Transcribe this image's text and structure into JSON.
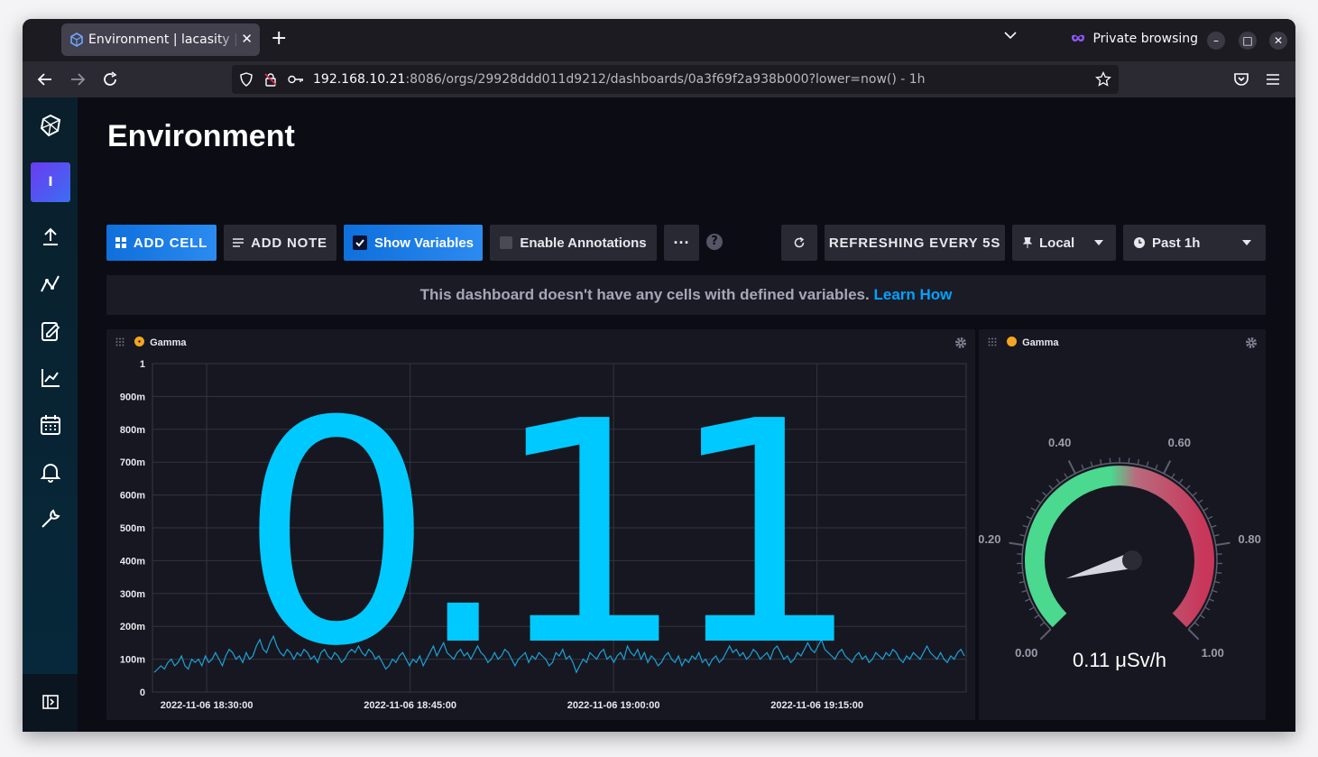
{
  "browser": {
    "tab_title": "Environment | lacasity | InfluxDB",
    "private_label": "Private browsing",
    "url_host": "192.168.10.21",
    "url_rest": ":8086/orgs/29928ddd011d9212/dashboards/0a3f69f2a938b000?lower=now() - 1h"
  },
  "sidebar": {
    "org_initial": "I",
    "items": [
      "influxdb-logo-icon",
      "upload-icon",
      "data-explorer-icon",
      "notebook-icon",
      "graph-icon",
      "calendar-icon",
      "bell-icon",
      "wrench-icon"
    ]
  },
  "dashboard": {
    "title": "Environment",
    "toolbar": {
      "add_cell": "ADD CELL",
      "add_note": "ADD NOTE",
      "show_variables": "Show Variables",
      "enable_annotations": "Enable Annotations",
      "refreshing": "REFRESHING EVERY 5S",
      "timezone": "Local",
      "time_range": "Past 1h"
    },
    "notice": "This dashboard doesn't have any cells with defined variables.",
    "notice_link": "Learn How"
  },
  "cells": {
    "left": {
      "title": "Gamma",
      "big_value": "0.11"
    },
    "right": {
      "title": "Gamma",
      "gauge_label": "0.11 μSv/h"
    }
  },
  "colors": {
    "accent": "#00c9ff",
    "gauge_green": "#4bd88f",
    "gauge_red": "#c8365a"
  },
  "chart_data": [
    {
      "type": "line",
      "title": "Gamma",
      "yticks": [
        "1",
        "900m",
        "800m",
        "700m",
        "600m",
        "500m",
        "400m",
        "300m",
        "200m",
        "100m",
        "0"
      ],
      "ylim": [
        0,
        1
      ],
      "xticks": [
        "2022-11-06 18:30:00",
        "2022-11-06 18:45:00",
        "2022-11-06 19:00:00",
        "2022-11-06 19:15:00"
      ],
      "xlim_minutes_from_1826": [
        0,
        60
      ],
      "series": [
        {
          "values": [
            0.06,
            0.07,
            0.08,
            0.07,
            0.09,
            0.1,
            0.08,
            0.09,
            0.11,
            0.08,
            0.07,
            0.1,
            0.09,
            0.1,
            0.08,
            0.11,
            0.09,
            0.1,
            0.12,
            0.1,
            0.08,
            0.11,
            0.13,
            0.12,
            0.1,
            0.11,
            0.09,
            0.12,
            0.1,
            0.11,
            0.14,
            0.16,
            0.13,
            0.12,
            0.15,
            0.17,
            0.14,
            0.12,
            0.11,
            0.13,
            0.12,
            0.1,
            0.12,
            0.11,
            0.13,
            0.12,
            0.1,
            0.11,
            0.09,
            0.12,
            0.13,
            0.11,
            0.1,
            0.12,
            0.11,
            0.09,
            0.1,
            0.12,
            0.13,
            0.12,
            0.14,
            0.12,
            0.11,
            0.13,
            0.12,
            0.1,
            0.11,
            0.09,
            0.07,
            0.08,
            0.1,
            0.09,
            0.11,
            0.12,
            0.1,
            0.08,
            0.1,
            0.09,
            0.11,
            0.08,
            0.1,
            0.12,
            0.14,
            0.11,
            0.13,
            0.15,
            0.12,
            0.11,
            0.1,
            0.12,
            0.13,
            0.11,
            0.12,
            0.1,
            0.12,
            0.14,
            0.12,
            0.11,
            0.09,
            0.1,
            0.12,
            0.1,
            0.11,
            0.13,
            0.12,
            0.1,
            0.08,
            0.1,
            0.11,
            0.12,
            0.09,
            0.11,
            0.1,
            0.12,
            0.11,
            0.1,
            0.08,
            0.09,
            0.12,
            0.11,
            0.13,
            0.1,
            0.11,
            0.09,
            0.06,
            0.08,
            0.1,
            0.09,
            0.12,
            0.11,
            0.1,
            0.12,
            0.13,
            0.1,
            0.11,
            0.09,
            0.11,
            0.12,
            0.1,
            0.14,
            0.12,
            0.11,
            0.13,
            0.1,
            0.12,
            0.09,
            0.11,
            0.1,
            0.08,
            0.09,
            0.11,
            0.12,
            0.1,
            0.09,
            0.11,
            0.08,
            0.1,
            0.09,
            0.11,
            0.1,
            0.12,
            0.09,
            0.1,
            0.08,
            0.1,
            0.11,
            0.09,
            0.1,
            0.12,
            0.14,
            0.12,
            0.13,
            0.11,
            0.12,
            0.1,
            0.11,
            0.13,
            0.12,
            0.1,
            0.11,
            0.12,
            0.1,
            0.13,
            0.14,
            0.12,
            0.1,
            0.11,
            0.09,
            0.1,
            0.12,
            0.11,
            0.13,
            0.15,
            0.13,
            0.12,
            0.14,
            0.16,
            0.13,
            0.12,
            0.11,
            0.1,
            0.12,
            0.13,
            0.11,
            0.1,
            0.09,
            0.11,
            0.12,
            0.1,
            0.11,
            0.09,
            0.1,
            0.12,
            0.11,
            0.1,
            0.12,
            0.11,
            0.13,
            0.12,
            0.1,
            0.09,
            0.11,
            0.1,
            0.12,
            0.11,
            0.1,
            0.12,
            0.14,
            0.12,
            0.11,
            0.1,
            0.12,
            0.1,
            0.09,
            0.11,
            0.1,
            0.12,
            0.13,
            0.11
          ]
        }
      ]
    },
    {
      "type": "gauge",
      "title": "Gamma",
      "ticks": [
        "0.00",
        "0.20",
        "0.40",
        "0.60",
        "0.80",
        "1.00"
      ],
      "range": [
        0,
        1
      ],
      "value": 0.11,
      "unit": "μSv/h"
    }
  ]
}
